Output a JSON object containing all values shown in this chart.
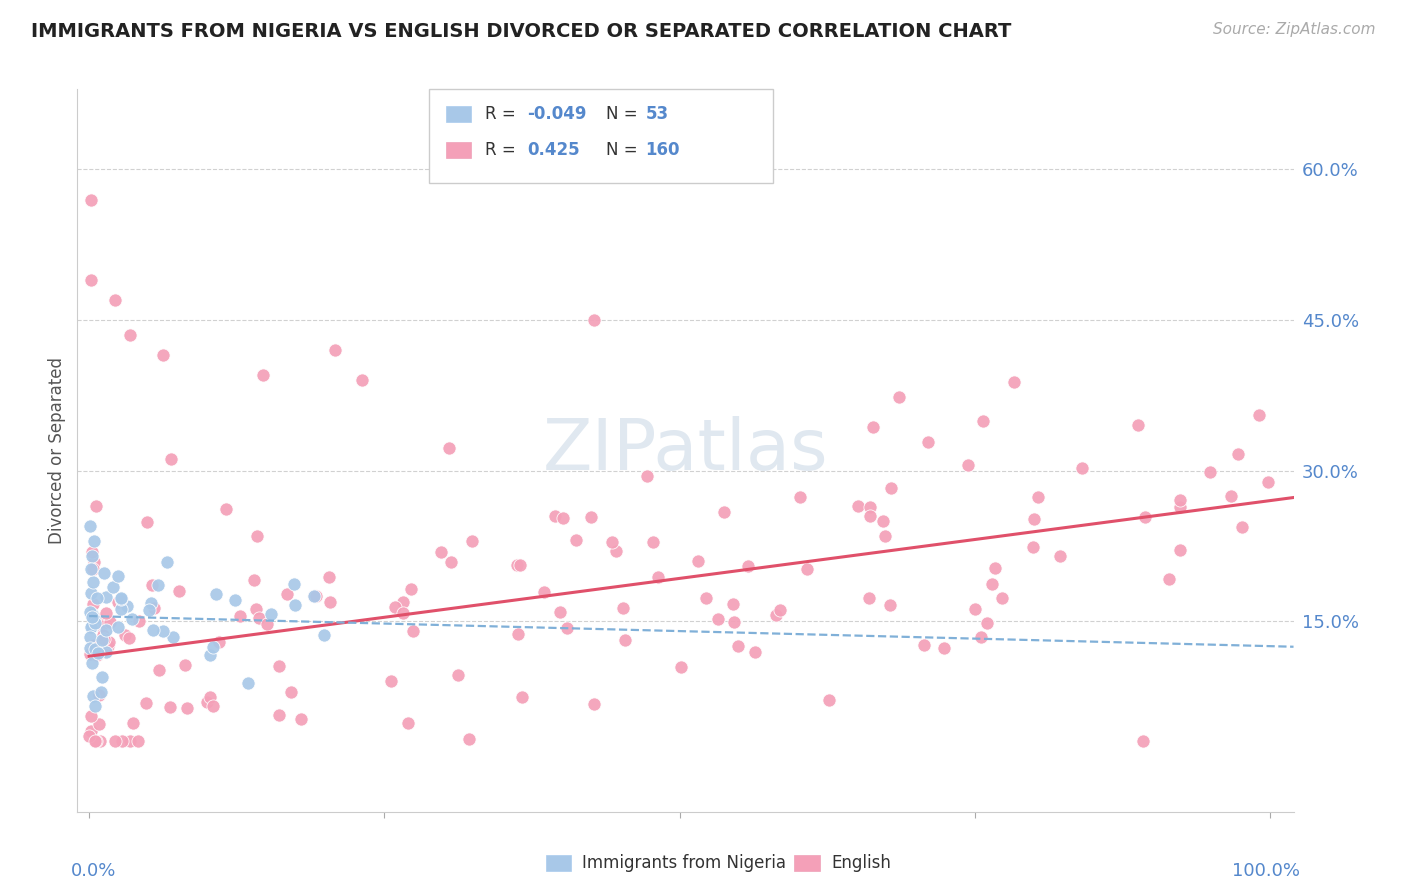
{
  "title": "IMMIGRANTS FROM NIGERIA VS ENGLISH DIVORCED OR SEPARATED CORRELATION CHART",
  "source": "Source: ZipAtlas.com",
  "ylabel": "Divorced or Separated",
  "ytick_values": [
    0.6,
    0.45,
    0.3,
    0.15
  ],
  "ytick_labels": [
    "60.0%",
    "45.0%",
    "30.0%",
    "15.0%"
  ],
  "xlim": [
    -0.01,
    1.02
  ],
  "ylim": [
    -0.04,
    0.68
  ],
  "blue_color": "#a8c8e8",
  "pink_color": "#f4a0b8",
  "pink_line_color": "#e0506a",
  "blue_dash_color": "#80b0d8",
  "grid_color": "#cccccc",
  "background_color": "#ffffff",
  "title_color": "#222222",
  "source_color": "#aaaaaa",
  "axis_label_color": "#5588cc",
  "watermark_color": "#e0e8f0",
  "legend_box_color": "#ffffff",
  "legend_border_color": "#cccccc"
}
